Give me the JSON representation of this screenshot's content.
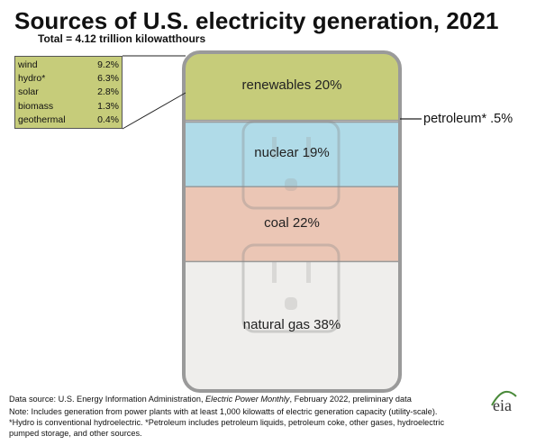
{
  "header": {
    "title": "Sources of U.S. electricity generation, 2021",
    "subtitle": "Total = 4.12 trillion kilowatthours"
  },
  "chart_data": {
    "type": "stacked-bar",
    "title": "Sources of U.S. electricity generation, 2021",
    "subtitle": "Total = 4.12 trillion kilowatthours",
    "unit": "percent of total",
    "segments": [
      {
        "name": "renewables",
        "value": 20,
        "label": "renewables 20%",
        "color": "#c6cc7a"
      },
      {
        "name": "petroleum*",
        "value": 0.5,
        "label": "petroleum* .5%",
        "color": "#e8e8e8"
      },
      {
        "name": "nuclear",
        "value": 19,
        "label": "nuclear 19%",
        "color": "#b0dbe8"
      },
      {
        "name": "coal",
        "value": 22,
        "label": "coal 22%",
        "color": "#ebc6b5"
      },
      {
        "name": "natural gas",
        "value": 38,
        "label": "natural gas 38%",
        "color": "#efeeec"
      }
    ],
    "renewables_breakdown": [
      {
        "name": "wind",
        "value": "9.2%"
      },
      {
        "name": "hydro*",
        "value": "6.3%"
      },
      {
        "name": "solar",
        "value": "2.8%"
      },
      {
        "name": "biomass",
        "value": "1.3%"
      },
      {
        "name": "geothermal",
        "value": "0.4%"
      }
    ]
  },
  "footer": {
    "source_prefix": "Data source: U.S. Energy Information Administration, ",
    "source_pub": "Electric Power Monthly",
    "source_suffix": ", February 2022, preliminary data",
    "note1": "Note: Includes generation from power plants with at least 1,000 kilowatts of electric generation capacity (utility-scale).",
    "note2": "*Hydro is conventional hydroelectric. *Petroleum includes petroleum liquids, petroleum coke, other gases, hydroelectric",
    "note3": "pumped storage, and other sources."
  },
  "logo": {
    "text": "eia"
  }
}
